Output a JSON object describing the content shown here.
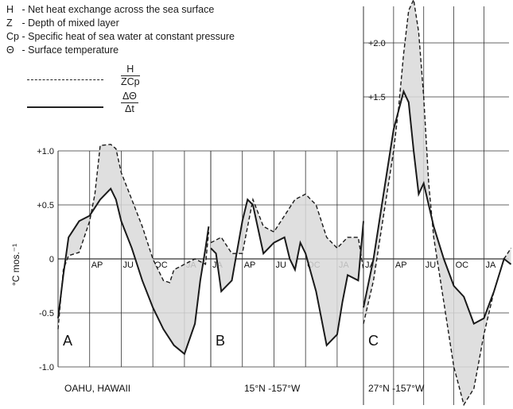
{
  "legend": {
    "H": {
      "key": "H",
      "text": "- Net heat exchange across the sea surface"
    },
    "Z": {
      "key": "Z",
      "text": "- Depth of mixed layer"
    },
    "Cp": {
      "key": "Cp",
      "text": "- Specific heat of sea water at constant pressure"
    },
    "theta": {
      "key": "Θ",
      "text": "- Surface temperature"
    },
    "dashed_num": "H",
    "dashed_den": "ZCp",
    "solid_num": "ΔΘ",
    "solid_den": "Δt"
  },
  "ylabel": "°C mos.⁻¹",
  "ytick_labels": [
    "+1.0",
    "+0.5",
    "0",
    "-0.5",
    "-1.0"
  ],
  "ytick_labels_C": [
    "+2.0",
    "+1.5"
  ],
  "month_labels": [
    "AP",
    "JU",
    "OC",
    "JA"
  ],
  "colors": {
    "line": "#1a1a1a",
    "fill": "#d9d9d9",
    "grid": "#333333"
  },
  "chart_data": [
    {
      "type": "line",
      "panel": "A",
      "location": "OAHU, HAWAII",
      "x_ticks": [
        "JA",
        "AP",
        "JU",
        "OC",
        "JA"
      ],
      "series": [
        {
          "name": "H/ZCp",
          "style": "dashed",
          "x": [
            0,
            0.5,
            1,
            2,
            3,
            3.5,
            4,
            5,
            5.5,
            6,
            7,
            8,
            9,
            10,
            10.6,
            11,
            12,
            13,
            14,
            14.3
          ],
          "y": [
            -0.65,
            -0.1,
            0.03,
            0.06,
            0.35,
            0.6,
            1.05,
            1.06,
            1.02,
            0.8,
            0.55,
            0.3,
            0,
            -0.2,
            -0.22,
            -0.1,
            -0.05,
            0,
            -0.05,
            0.25
          ]
        },
        {
          "name": "ΔΘ/Δt",
          "style": "solid",
          "x": [
            0,
            0.5,
            1,
            2,
            3,
            4,
            5,
            5.5,
            6,
            7,
            8,
            9,
            10,
            11,
            12,
            13,
            13.5,
            14,
            14.3
          ],
          "y": [
            -0.55,
            -0.15,
            0.2,
            0.35,
            0.4,
            0.55,
            0.65,
            0.55,
            0.35,
            0.1,
            -0.2,
            -0.45,
            -0.65,
            -0.8,
            -0.88,
            -0.6,
            -0.2,
            0.1,
            0.3
          ]
        }
      ]
    },
    {
      "type": "line",
      "panel": "B",
      "location": "15°N -157°W",
      "x_ticks": [
        "JA",
        "AP",
        "JU",
        "OC",
        "JA"
      ],
      "series": [
        {
          "name": "H/ZCp",
          "style": "dashed",
          "x": [
            0,
            1,
            2,
            3,
            4,
            5,
            6,
            7,
            8,
            9,
            10,
            11,
            12,
            13,
            14,
            14.5
          ],
          "y": [
            0.15,
            0.2,
            0.05,
            0.05,
            0.55,
            0.3,
            0.25,
            0.4,
            0.55,
            0.6,
            0.5,
            0.2,
            0.1,
            0.2,
            0.2,
            -0.1
          ]
        },
        {
          "name": "ΔΘ/Δt",
          "style": "solid",
          "x": [
            0,
            0.5,
            1,
            2,
            3,
            3.5,
            4,
            5,
            6,
            7,
            7.5,
            8,
            8.5,
            9,
            10,
            11,
            12,
            12.5,
            13,
            14,
            14.5
          ],
          "y": [
            0.1,
            0.05,
            -0.3,
            -0.2,
            0.35,
            0.55,
            0.5,
            0.05,
            0.15,
            0.2,
            0,
            -0.1,
            0.15,
            0.05,
            -0.3,
            -0.8,
            -0.7,
            -0.4,
            -0.15,
            -0.2,
            0.35
          ]
        }
      ]
    },
    {
      "type": "line",
      "panel": "C",
      "location": "27°N -157°W",
      "x_ticks": [
        "JA",
        "AP",
        "JU",
        "OC",
        "JA"
      ],
      "series": [
        {
          "name": "H/ZCp",
          "style": "dashed",
          "x": [
            0,
            1,
            2,
            3,
            3.5,
            4,
            4.5,
            5,
            5.5,
            6,
            6.5,
            7,
            8,
            9,
            10,
            11,
            12,
            13,
            14,
            14.7
          ],
          "y": [
            -0.6,
            -0.2,
            0.4,
            1.0,
            1.4,
            1.9,
            2.3,
            2.4,
            2.1,
            1.5,
            0.7,
            0.2,
            -0.4,
            -1.0,
            -1.35,
            -1.2,
            -0.7,
            -0.3,
            0,
            0.1
          ]
        },
        {
          "name": "ΔΘ/Δt",
          "style": "solid",
          "x": [
            0,
            1,
            2,
            3,
            4,
            4.5,
            5,
            5.5,
            6,
            7,
            8,
            9,
            10,
            11,
            12,
            13,
            14,
            14.7
          ],
          "y": [
            -0.45,
            0,
            0.6,
            1.2,
            1.55,
            1.45,
            1.0,
            0.6,
            0.7,
            0.3,
            0,
            -0.25,
            -0.35,
            -0.6,
            -0.55,
            -0.3,
            0,
            -0.05
          ]
        }
      ]
    }
  ]
}
